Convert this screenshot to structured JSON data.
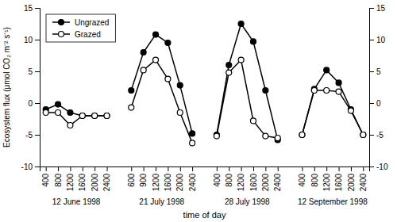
{
  "chart_data": {
    "type": "line",
    "xlabel": "time of day",
    "ylabel": "Ecosystem flux (μmol CO₂ m⁻² s⁻¹)",
    "categories": [
      "400",
      "800",
      "1200",
      "1600",
      "2000",
      "2400",
      null,
      "600",
      "900",
      "1200",
      "1600",
      "2000",
      "2400",
      null,
      "400",
      "800",
      "1200",
      "1600",
      "2000",
      "2400",
      null,
      "400",
      "800",
      "1200",
      "1600",
      "2000",
      "2400"
    ],
    "annotations": [
      "12 June 1998",
      "21 July 1998",
      "28 July 1998",
      "12 September 1998"
    ],
    "series": [
      {
        "name": "Ungrazed",
        "color": "#000000",
        "marker": "circle",
        "values": [
          -1.0,
          -0.2,
          -1.5,
          -2.0,
          -2.0,
          -2.0,
          null,
          2.0,
          8.0,
          10.8,
          9.5,
          2.8,
          -4.8,
          null,
          -5.0,
          6.0,
          12.5,
          9.7,
          2.0,
          -5.8,
          null,
          -5.0,
          2.2,
          5.2,
          3.2,
          -1.0,
          -5.0
        ]
      },
      {
        "name": "Grazed",
        "color": "#000000",
        "marker": "circle-open",
        "values": [
          -1.5,
          -1.5,
          -3.5,
          -2.0,
          -2.0,
          -2.0,
          null,
          -0.7,
          5.2,
          6.8,
          3.8,
          -1.5,
          -6.3,
          null,
          -5.2,
          4.8,
          6.8,
          -2.8,
          -5.2,
          -5.5,
          null,
          -5.0,
          2.0,
          2.0,
          1.8,
          -1.2,
          -5.0
        ]
      }
    ],
    "ylim": [
      -10,
      15
    ],
    "yticks": [
      -10,
      -5,
      0,
      5,
      10,
      15
    ],
    "y2lim": [
      -10,
      15
    ],
    "y2ticks": [
      -10,
      -5,
      0,
      5,
      10,
      15
    ],
    "legend": "upper left"
  }
}
